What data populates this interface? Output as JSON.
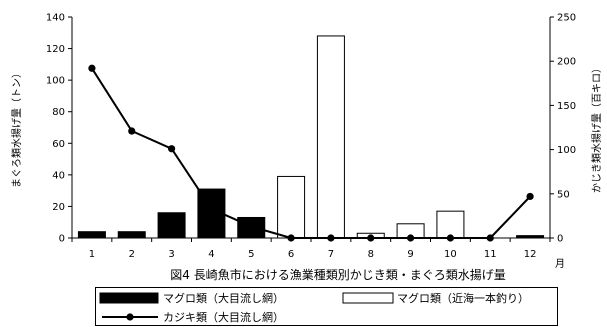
{
  "chart_data": {
    "type": "bar",
    "title": "図4 長崎魚市における漁業種類別かじき類・まぐろ類水揚げ量",
    "categories": [
      "1",
      "2",
      "3",
      "4",
      "5",
      "6",
      "7",
      "8",
      "9",
      "10",
      "11",
      "12"
    ],
    "xlabel": "月",
    "ylabel": "まぐろ類水揚げ量（トン）",
    "y2label": "かじき類水揚げ量（百キロ）",
    "ylim": [
      0,
      140
    ],
    "y2lim": [
      0,
      250
    ],
    "yticks": [
      0,
      20,
      40,
      60,
      80,
      100,
      120,
      140
    ],
    "y2ticks": [
      0,
      50,
      100,
      150,
      200,
      250
    ],
    "grid": false,
    "stacked": true,
    "legend_position": "bottom",
    "series": [
      {
        "name": "マグロ類（大目流し網）",
        "type": "bar",
        "axis": "left",
        "color": "#000000",
        "values": [
          4,
          4,
          16,
          31,
          13,
          0,
          0,
          0,
          0,
          0,
          0,
          1.5
        ]
      },
      {
        "name": "マグロ類（近海一本釣り）",
        "type": "bar",
        "axis": "left",
        "color": "#ffffff",
        "values": [
          0,
          0,
          0,
          0,
          0,
          39,
          128,
          3,
          9,
          17,
          0,
          0
        ]
      },
      {
        "name": "カジキ類（大目流し網）",
        "type": "line",
        "axis": "right",
        "color": "#000000",
        "values": [
          192,
          121,
          101,
          33,
          13,
          0,
          0,
          0,
          0,
          0,
          0,
          47
        ]
      }
    ]
  }
}
